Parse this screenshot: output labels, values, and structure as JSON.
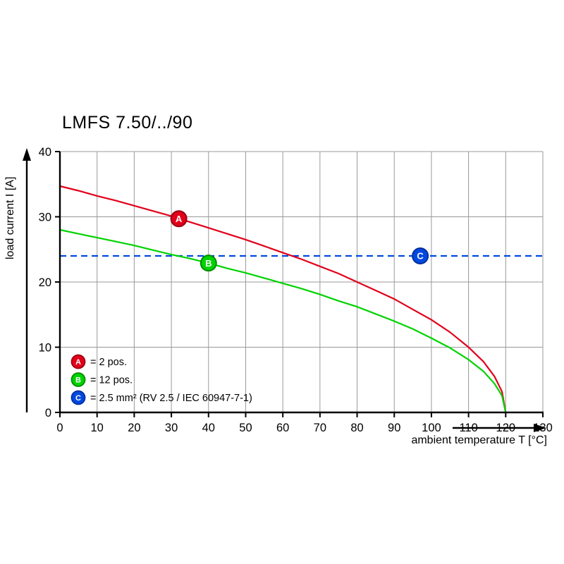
{
  "chart_data": {
    "type": "line",
    "title": "LMFS 7.50/../90",
    "xlabel": "ambient temperature T [°C]",
    "ylabel": "load current I [A]",
    "xlim": [
      0,
      130
    ],
    "ylim": [
      0,
      40
    ],
    "xticks": [
      0,
      10,
      20,
      30,
      40,
      50,
      60,
      70,
      80,
      90,
      100,
      110,
      120,
      130
    ],
    "yticks": [
      0,
      10,
      20,
      30,
      40
    ],
    "grid": true,
    "grid_color": "#999999",
    "axis_color": "#000000",
    "legend_position": "lower-left-inside",
    "series": [
      {
        "name": "A",
        "label": "= 2 pos.",
        "color": "#e2001a",
        "ring": "#990012",
        "style": "solid",
        "marker": {
          "x": 32,
          "y": 29.7
        },
        "points": [
          [
            0,
            34.7
          ],
          [
            5,
            34.0
          ],
          [
            10,
            33.2
          ],
          [
            15,
            32.5
          ],
          [
            20,
            31.7
          ],
          [
            25,
            30.9
          ],
          [
            30,
            30.1
          ],
          [
            35,
            29.2
          ],
          [
            40,
            28.3
          ],
          [
            45,
            27.4
          ],
          [
            50,
            26.5
          ],
          [
            55,
            25.5
          ],
          [
            60,
            24.5
          ],
          [
            65,
            23.5
          ],
          [
            70,
            22.4
          ],
          [
            75,
            21.3
          ],
          [
            80,
            20.0
          ],
          [
            85,
            18.7
          ],
          [
            90,
            17.4
          ],
          [
            95,
            15.8
          ],
          [
            100,
            14.2
          ],
          [
            105,
            12.3
          ],
          [
            110,
            10.0
          ],
          [
            114,
            7.8
          ],
          [
            117,
            5.5
          ],
          [
            119,
            3.2
          ],
          [
            120,
            0
          ]
        ]
      },
      {
        "name": "B",
        "label": "= 12 pos.",
        "color": "#00d300",
        "ring": "#008a00",
        "style": "solid",
        "marker": {
          "x": 40,
          "y": 22.9
        },
        "points": [
          [
            0,
            28.0
          ],
          [
            5,
            27.4
          ],
          [
            10,
            26.8
          ],
          [
            15,
            26.2
          ],
          [
            20,
            25.6
          ],
          [
            25,
            24.9
          ],
          [
            30,
            24.2
          ],
          [
            35,
            23.6
          ],
          [
            40,
            22.9
          ],
          [
            45,
            22.1
          ],
          [
            50,
            21.4
          ],
          [
            55,
            20.6
          ],
          [
            60,
            19.8
          ],
          [
            65,
            19.0
          ],
          [
            70,
            18.1
          ],
          [
            75,
            17.1
          ],
          [
            80,
            16.2
          ],
          [
            85,
            15.1
          ],
          [
            90,
            14.0
          ],
          [
            95,
            12.8
          ],
          [
            100,
            11.4
          ],
          [
            105,
            9.9
          ],
          [
            110,
            8.1
          ],
          [
            114,
            6.3
          ],
          [
            117,
            4.4
          ],
          [
            119,
            2.6
          ],
          [
            120,
            0
          ]
        ]
      },
      {
        "name": "C",
        "label": "= 2.5 mm² (RV 2.5 / IEC 60947-7-1)",
        "color": "#0049df",
        "ring": "#002d9e",
        "style": "dashed",
        "marker": {
          "x": 97,
          "y": 24
        },
        "points": [
          [
            0,
            24
          ],
          [
            130,
            24
          ]
        ]
      }
    ]
  }
}
